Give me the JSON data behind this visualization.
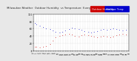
{
  "title": "Milwaukee Weather  Outdoor Humidity  vs Temperature  Every 5 Minutes",
  "bg_color": "#e8e8e8",
  "plot_bg": "#ffffff",
  "grid_color": "#bbbbbb",
  "humidity_color": "#0000cc",
  "temp_color": "#cc0000",
  "legend_humidity_color": "#cc0000",
  "legend_temp_color": "#0000cc",
  "humidity_x": [
    0.01,
    0.03,
    0.06,
    0.1,
    0.13,
    0.17,
    0.2,
    0.23,
    0.27,
    0.3,
    0.33,
    0.37,
    0.4,
    0.43,
    0.47,
    0.5,
    0.53,
    0.57,
    0.6,
    0.63,
    0.67,
    0.7,
    0.73,
    0.77,
    0.8,
    0.83,
    0.87,
    0.9,
    0.93,
    0.97
  ],
  "humidity_y": [
    75,
    72,
    68,
    65,
    60,
    58,
    55,
    52,
    50,
    52,
    55,
    58,
    62,
    60,
    58,
    56,
    54,
    52,
    50,
    52,
    54,
    56,
    58,
    56,
    58,
    60,
    58,
    56,
    55,
    56
  ],
  "temp_x": [
    0.01,
    0.03,
    0.06,
    0.1,
    0.13,
    0.17,
    0.2,
    0.23,
    0.27,
    0.3,
    0.33,
    0.37,
    0.4,
    0.43,
    0.47,
    0.5,
    0.53,
    0.57,
    0.6,
    0.63,
    0.67,
    0.7,
    0.73,
    0.77,
    0.8,
    0.83,
    0.87,
    0.9,
    0.93,
    0.97
  ],
  "temp_y": [
    10,
    10,
    9,
    10,
    12,
    18,
    28,
    36,
    40,
    42,
    44,
    46,
    44,
    40,
    38,
    42,
    44,
    42,
    40,
    38,
    36,
    38,
    40,
    38,
    36,
    38,
    42,
    44,
    46,
    44
  ],
  "ylim": [
    0,
    100
  ],
  "xlim": [
    0.0,
    1.0
  ],
  "ytick_vals": [
    0,
    20,
    40,
    60,
    80,
    100
  ],
  "ytick_labels": [
    "0",
    "20",
    "40",
    "60",
    "80",
    "100"
  ],
  "marker_size": 1.2,
  "tick_fontsize": 2.5,
  "title_fontsize": 2.8,
  "legend_fontsize": 2.5
}
